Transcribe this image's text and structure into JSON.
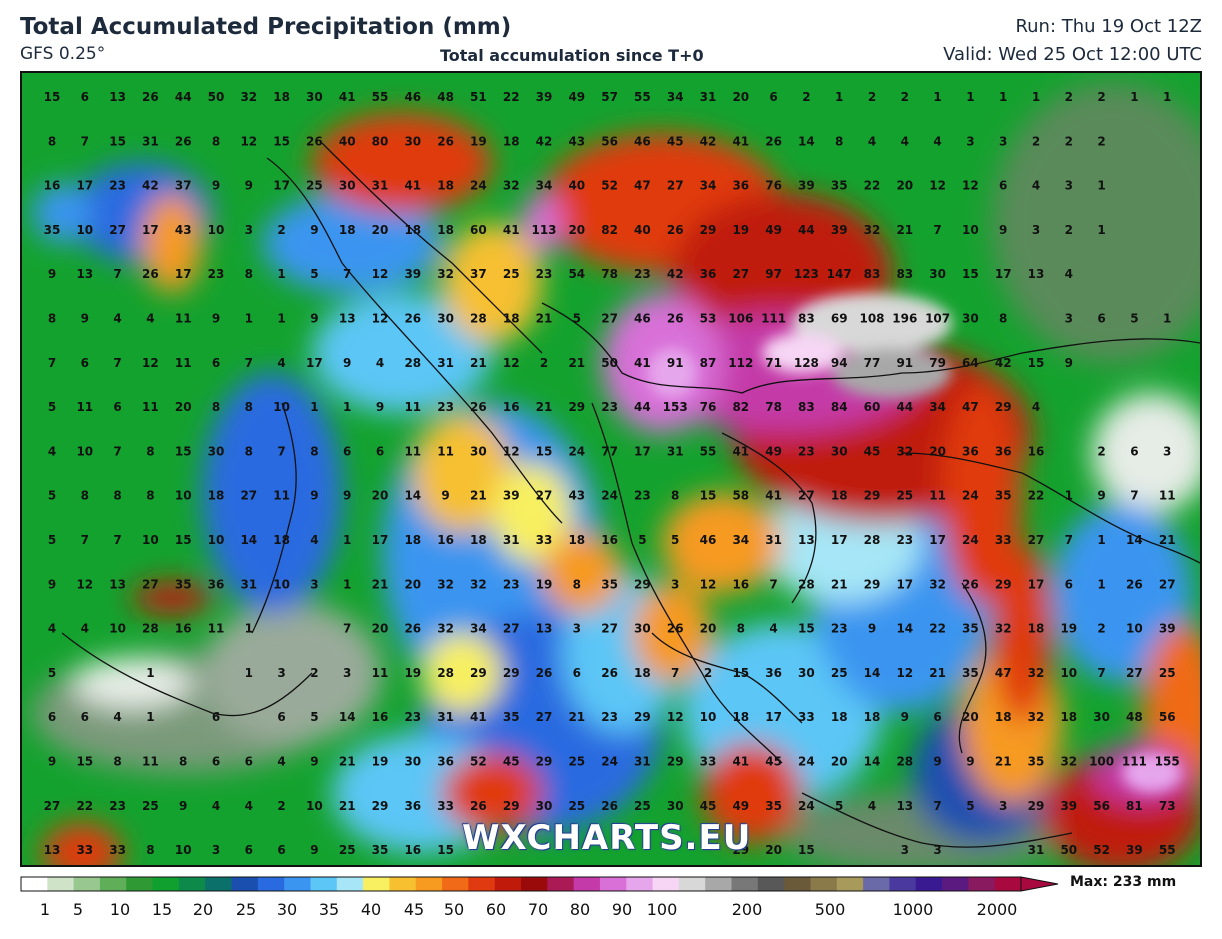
{
  "header": {
    "title": "Total Accumulated Precipitation (mm)",
    "model": "GFS 0.25°",
    "subtitle": "Total accumulation since T+0",
    "run": "Run: Thu 19 Oct 12Z",
    "valid": "Valid: Wed 25 Oct 12:00 UTC"
  },
  "watermark": "WXCHARTS.EU",
  "legend": {
    "max_label": "Max: 233 mm",
    "ticks": [
      "1",
      "5",
      "10",
      "15",
      "20",
      "25",
      "30",
      "35",
      "40",
      "45",
      "50",
      "60",
      "70",
      "80",
      "90",
      "100",
      "200",
      "500",
      "1000",
      "2000"
    ],
    "colors": [
      "#ffffff",
      "#cfe3c8",
      "#98c78f",
      "#5fae58",
      "#2f9a33",
      "#10a030",
      "#0d8a4a",
      "#0b6f6a",
      "#1a4fb0",
      "#2a6ae0",
      "#3a95f0",
      "#5cc6f6",
      "#a6e6f6",
      "#f8f060",
      "#f6c030",
      "#f69a20",
      "#f06a18",
      "#e03a10",
      "#c01a0a",
      "#9a0a0a",
      "#aa1a55",
      "#c43aa8",
      "#d870d8",
      "#e6a6ec",
      "#f6d6f4",
      "#d8d8d8",
      "#a8a8a8",
      "#787878",
      "#585858",
      "#6a5a3a",
      "#8a7a4a",
      "#a89a5a",
      "#6a6aa8",
      "#4a3aa0",
      "#3a1a90",
      "#5a1a80",
      "#8a1a60",
      "#a80a40"
    ]
  },
  "grid_values": [
    [
      "15",
      "6",
      "13",
      "26",
      "44",
      "50",
      "32",
      "18",
      "30",
      "41",
      "55",
      "46",
      "48",
      "51",
      "22",
      "39",
      "49",
      "57",
      "55",
      "34",
      "31",
      "20",
      "6",
      "2",
      "1",
      "2",
      "2",
      "1",
      "1",
      "1",
      "1",
      "2",
      "2",
      "1",
      "1"
    ],
    [
      "8",
      "7",
      "15",
      "31",
      "26",
      "8",
      "12",
      "15",
      "26",
      "40",
      "80",
      "30",
      "26",
      "19",
      "18",
      "42",
      "43",
      "56",
      "46",
      "45",
      "42",
      "41",
      "26",
      "14",
      "8",
      "4",
      "4",
      "4",
      "3",
      "3",
      "2",
      "2",
      "2",
      "",
      ""
    ],
    [
      "16",
      "17",
      "23",
      "42",
      "37",
      "9",
      "9",
      "17",
      "25",
      "30",
      "31",
      "41",
      "18",
      "24",
      "32",
      "34",
      "40",
      "52",
      "47",
      "27",
      "34",
      "36",
      "76",
      "39",
      "35",
      "22",
      "20",
      "12",
      "12",
      "6",
      "4",
      "3",
      "1",
      "",
      ""
    ],
    [
      "35",
      "10",
      "27",
      "17",
      "43",
      "10",
      "3",
      "2",
      "9",
      "18",
      "20",
      "18",
      "18",
      "60",
      "41",
      "113",
      "20",
      "82",
      "40",
      "26",
      "29",
      "19",
      "49",
      "44",
      "39",
      "32",
      "21",
      "7",
      "10",
      "9",
      "3",
      "2",
      "1",
      "",
      ""
    ],
    [
      "9",
      "13",
      "7",
      "26",
      "17",
      "23",
      "8",
      "1",
      "5",
      "7",
      "12",
      "39",
      "32",
      "37",
      "25",
      "23",
      "54",
      "78",
      "23",
      "42",
      "36",
      "27",
      "97",
      "123",
      "147",
      "83",
      "83",
      "30",
      "15",
      "17",
      "13",
      "4",
      "",
      "",
      ""
    ],
    [
      "8",
      "9",
      "4",
      "4",
      "11",
      "9",
      "1",
      "1",
      "9",
      "13",
      "12",
      "26",
      "30",
      "28",
      "18",
      "21",
      "5",
      "27",
      "46",
      "26",
      "53",
      "106",
      "111",
      "83",
      "69",
      "108",
      "196",
      "107",
      "30",
      "8",
      "",
      "3",
      "6",
      "5",
      "1"
    ],
    [
      "7",
      "6",
      "7",
      "12",
      "11",
      "6",
      "7",
      "4",
      "17",
      "9",
      "4",
      "28",
      "31",
      "21",
      "12",
      "2",
      "21",
      "50",
      "41",
      "91",
      "87",
      "112",
      "71",
      "128",
      "94",
      "77",
      "91",
      "79",
      "64",
      "42",
      "15",
      "9",
      "",
      "",
      ""
    ],
    [
      "5",
      "11",
      "6",
      "11",
      "20",
      "8",
      "8",
      "10",
      "1",
      "1",
      "9",
      "11",
      "23",
      "26",
      "16",
      "21",
      "29",
      "23",
      "44",
      "153",
      "76",
      "82",
      "78",
      "83",
      "84",
      "60",
      "44",
      "34",
      "47",
      "29",
      "4",
      "",
      "",
      "",
      ""
    ],
    [
      "4",
      "10",
      "7",
      "8",
      "15",
      "30",
      "8",
      "7",
      "8",
      "6",
      "6",
      "11",
      "11",
      "30",
      "12",
      "15",
      "24",
      "77",
      "17",
      "31",
      "55",
      "41",
      "49",
      "23",
      "30",
      "45",
      "32",
      "20",
      "36",
      "36",
      "16",
      "",
      "2",
      "6",
      "3"
    ],
    [
      "5",
      "8",
      "8",
      "8",
      "10",
      "18",
      "27",
      "11",
      "9",
      "9",
      "20",
      "14",
      "9",
      "21",
      "39",
      "27",
      "43",
      "24",
      "23",
      "8",
      "15",
      "58",
      "41",
      "27",
      "18",
      "29",
      "25",
      "11",
      "24",
      "35",
      "22",
      "1",
      "9",
      "7",
      "11"
    ],
    [
      "5",
      "7",
      "7",
      "10",
      "15",
      "10",
      "14",
      "18",
      "4",
      "1",
      "17",
      "18",
      "16",
      "18",
      "31",
      "33",
      "18",
      "16",
      "5",
      "5",
      "46",
      "34",
      "31",
      "13",
      "17",
      "28",
      "23",
      "17",
      "24",
      "33",
      "27",
      "7",
      "1",
      "14",
      "21"
    ],
    [
      "9",
      "12",
      "13",
      "27",
      "35",
      "36",
      "31",
      "10",
      "3",
      "1",
      "21",
      "20",
      "32",
      "32",
      "23",
      "19",
      "8",
      "35",
      "29",
      "3",
      "12",
      "16",
      "7",
      "28",
      "21",
      "29",
      "17",
      "32",
      "26",
      "29",
      "17",
      "6",
      "1",
      "26",
      "27"
    ],
    [
      "4",
      "4",
      "10",
      "28",
      "16",
      "11",
      "1",
      "",
      "",
      "7",
      "20",
      "26",
      "32",
      "34",
      "27",
      "13",
      "3",
      "27",
      "30",
      "26",
      "20",
      "8",
      "4",
      "15",
      "23",
      "9",
      "14",
      "22",
      "35",
      "32",
      "18",
      "19",
      "2",
      "10",
      "39"
    ],
    [
      "5",
      "",
      "",
      "1",
      "",
      "",
      "1",
      "3",
      "2",
      "3",
      "11",
      "19",
      "28",
      "29",
      "29",
      "26",
      "6",
      "26",
      "18",
      "7",
      "2",
      "15",
      "36",
      "30",
      "25",
      "14",
      "12",
      "21",
      "35",
      "47",
      "32",
      "10",
      "7",
      "27",
      "25"
    ],
    [
      "6",
      "6",
      "4",
      "1",
      "",
      "6",
      "",
      "6",
      "5",
      "14",
      "16",
      "23",
      "31",
      "41",
      "35",
      "27",
      "21",
      "23",
      "29",
      "12",
      "10",
      "18",
      "17",
      "33",
      "18",
      "18",
      "9",
      "6",
      "20",
      "18",
      "32",
      "18",
      "30",
      "48",
      "56"
    ],
    [
      "9",
      "15",
      "8",
      "11",
      "8",
      "6",
      "6",
      "4",
      "9",
      "21",
      "19",
      "30",
      "36",
      "52",
      "45",
      "29",
      "25",
      "24",
      "31",
      "29",
      "33",
      "41",
      "45",
      "24",
      "20",
      "14",
      "28",
      "9",
      "9",
      "21",
      "35",
      "32",
      "100",
      "111",
      "155"
    ],
    [
      "27",
      "22",
      "23",
      "25",
      "9",
      "4",
      "4",
      "2",
      "10",
      "21",
      "29",
      "36",
      "33",
      "26",
      "29",
      "30",
      "25",
      "26",
      "25",
      "30",
      "45",
      "49",
      "35",
      "24",
      "5",
      "4",
      "13",
      "7",
      "5",
      "3",
      "29",
      "39",
      "56",
      "81",
      "73"
    ],
    [
      "13",
      "33",
      "33",
      "8",
      "10",
      "3",
      "6",
      "6",
      "9",
      "25",
      "35",
      "16",
      "15",
      "",
      "",
      "",
      "",
      "",
      "",
      "",
      "",
      "29",
      "20",
      "15",
      "",
      "",
      "3",
      "3",
      "",
      "",
      "31",
      "50",
      "52",
      "39",
      "55"
    ]
  ]
}
